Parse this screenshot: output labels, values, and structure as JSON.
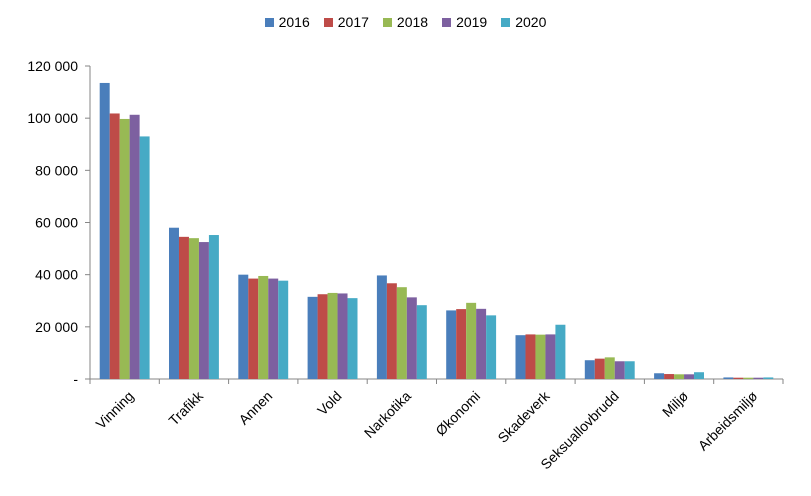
{
  "chart_data": {
    "type": "bar",
    "title": "",
    "xlabel": "",
    "ylabel": "",
    "ylim": [
      0,
      120000
    ],
    "yticks": [
      0,
      20000,
      40000,
      60000,
      80000,
      100000,
      120000
    ],
    "ytick_labels": [
      "-",
      "20 000",
      "40 000",
      "60 000",
      "80 000",
      "100 000",
      "120 000"
    ],
    "grid": false,
    "legend_position": "top-center",
    "categories": [
      "Vinning",
      "Trafikk",
      "Annen",
      "Vold",
      "Narkotika",
      "Økonomi",
      "Skadeverk",
      "Seksuallovbrudd",
      "Miljø",
      "Arbeidsmiljø"
    ],
    "series": [
      {
        "name": "2016",
        "color": "#4a7ebb",
        "values": [
          113500,
          58000,
          40000,
          31500,
          39700,
          26300,
          16800,
          7200,
          2200,
          600
        ]
      },
      {
        "name": "2017",
        "color": "#be4b48",
        "values": [
          101800,
          54500,
          38500,
          32500,
          36700,
          26800,
          17100,
          7800,
          1900,
          500
        ]
      },
      {
        "name": "2018",
        "color": "#98b954",
        "values": [
          99700,
          54000,
          39500,
          33000,
          35200,
          29200,
          17000,
          8300,
          1800,
          500
        ]
      },
      {
        "name": "2019",
        "color": "#7d60a0",
        "values": [
          101300,
          52500,
          38500,
          32800,
          31300,
          26900,
          17100,
          6800,
          1800,
          500
        ]
      },
      {
        "name": "2020",
        "color": "#46aac5",
        "values": [
          93000,
          55200,
          37700,
          31000,
          28300,
          24400,
          20800,
          6800,
          2600,
          600
        ]
      }
    ]
  }
}
